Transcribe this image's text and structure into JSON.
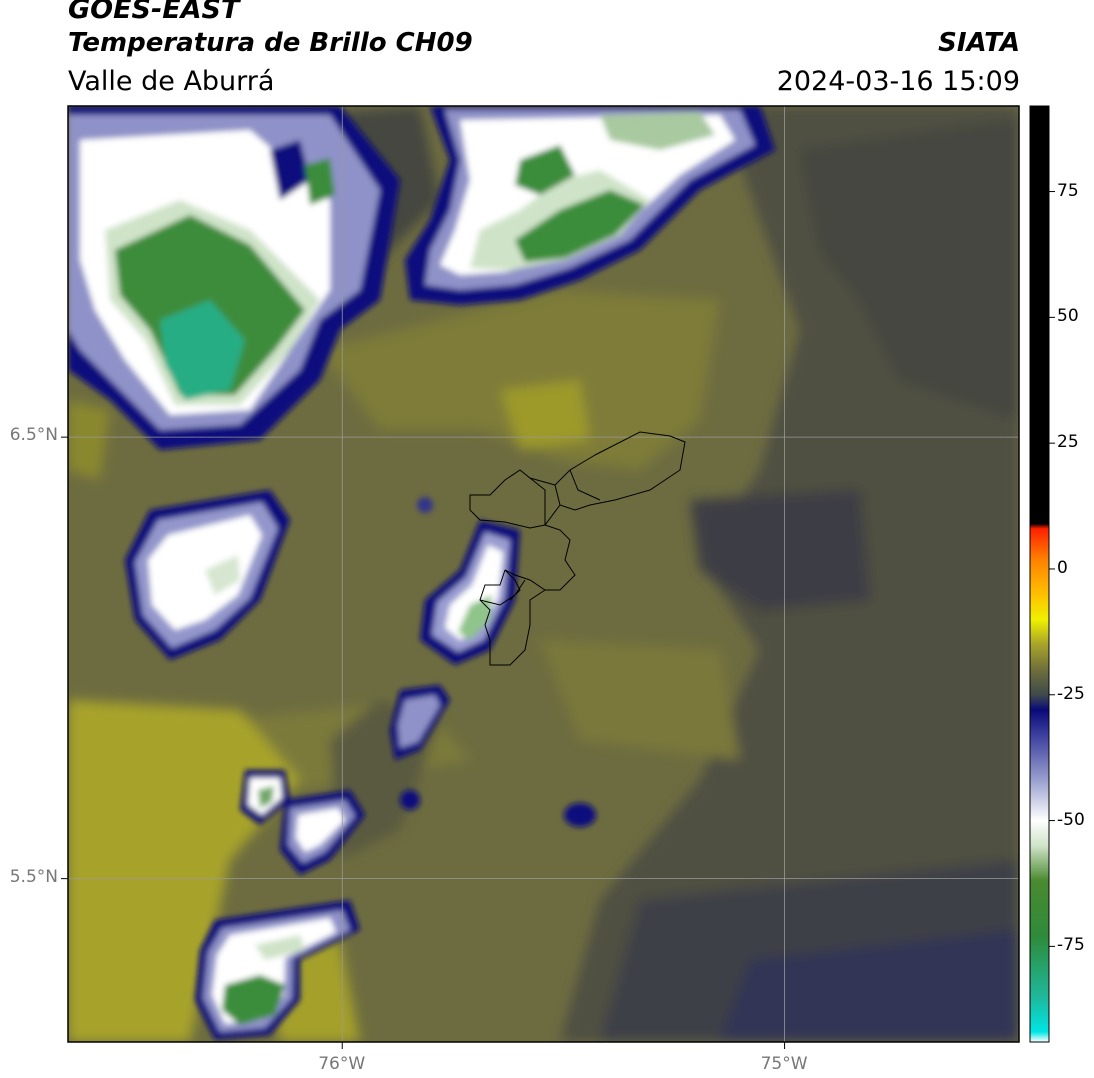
{
  "header": {
    "satellite": "GOES-EAST",
    "product": "Temperatura de Brillo CH09",
    "region": "Valle de Aburrá",
    "organization": "SIATA",
    "datetime": "2024-03-16 15:09"
  },
  "axes": {
    "x_ticks": [
      {
        "label": "76°W",
        "lon": -76.0
      },
      {
        "label": "75°W",
        "lon": -75.0
      }
    ],
    "y_ticks": [
      {
        "label": "6.5°N",
        "lat": 6.5
      },
      {
        "label": "5.5°N",
        "lat": 5.5
      }
    ],
    "lon_range": [
      -76.62,
      -74.47
    ],
    "lat_range": [
      5.13,
      7.25
    ],
    "gridlines": true
  },
  "colorbar": {
    "units_range": [
      -94,
      92
    ],
    "tick_labels": [
      {
        "label": "75",
        "value": 75
      },
      {
        "label": "50",
        "value": 50
      },
      {
        "label": "25",
        "value": 25
      },
      {
        "label": "0",
        "value": 0
      },
      {
        "label": "-25",
        "value": -25
      },
      {
        "label": "-50",
        "value": -50
      },
      {
        "label": "-75",
        "value": -75
      }
    ],
    "stops": [
      {
        "value": -94,
        "color": "#ffffff"
      },
      {
        "value": -92,
        "color": "#00e5e5"
      },
      {
        "value": -85,
        "color": "#1fb89a"
      },
      {
        "value": -73,
        "color": "#2e8b3a"
      },
      {
        "value": -62,
        "color": "#4a8a30"
      },
      {
        "value": -55,
        "color": "#cfe3c8"
      },
      {
        "value": -50,
        "color": "#ffffff"
      },
      {
        "value": -42,
        "color": "#9aa0cf"
      },
      {
        "value": -33,
        "color": "#3c3f9e"
      },
      {
        "value": -28,
        "color": "#0a0a7a"
      },
      {
        "value": -25,
        "color": "#3f4a4a"
      },
      {
        "value": -20,
        "color": "#6f6f3a"
      },
      {
        "value": -15,
        "color": "#a8a42a"
      },
      {
        "value": -10,
        "color": "#f0f000"
      },
      {
        "value": -5,
        "color": "#ffc000"
      },
      {
        "value": 2,
        "color": "#ff8000"
      },
      {
        "value": 8,
        "color": "#ff2000"
      },
      {
        "value": 9,
        "color": "#000000"
      },
      {
        "value": 92,
        "color": "#000000"
      }
    ]
  },
  "colors": {
    "field_dark": "#44473f",
    "field_mid": "#6d6c40",
    "field_olive": "#8a882f",
    "field_bright": "#a6a22a",
    "cold_blue": "#0b0f7a",
    "cold_lavender": "#8f92c8",
    "cold_white": "#ffffff",
    "coldest_green": "#3a8d3a",
    "coldest_teal": "#22b58a",
    "border": "#000000",
    "grid": "#9a9a9a"
  }
}
